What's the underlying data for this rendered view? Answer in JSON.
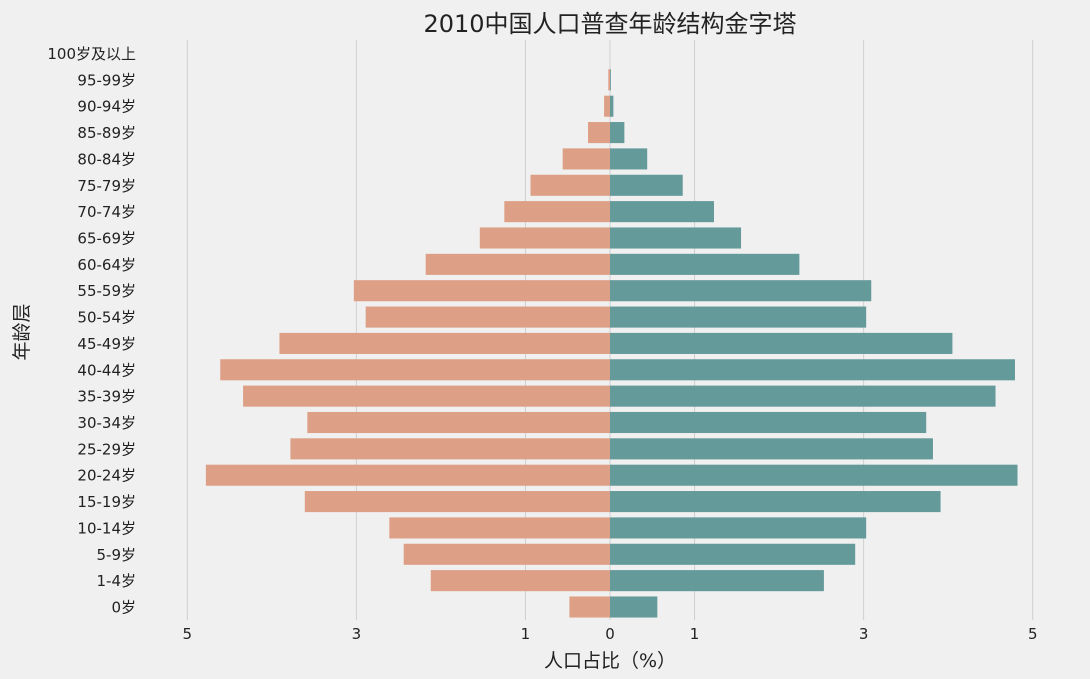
{
  "chart_data": {
    "type": "bar",
    "orientation": "horizontal",
    "title": "2010中国人口普查年龄结构金字塔",
    "xlabel": "人口占比（%）",
    "ylabel": "年龄层",
    "categories": [
      "0岁",
      "1-4岁",
      "5-9岁",
      "10-14岁",
      "15-19岁",
      "20-24岁",
      "25-29岁",
      "30-34岁",
      "35-39岁",
      "40-44岁",
      "45-49岁",
      "50-54岁",
      "55-59岁",
      "60-64岁",
      "65-69岁",
      "70-74岁",
      "75-79岁",
      "80-84岁",
      "85-89岁",
      "90-94岁",
      "95-99岁",
      "100岁及以上"
    ],
    "series": [
      {
        "values": [
          -0.48,
          -2.12,
          -2.44,
          -2.61,
          -3.61,
          -4.78,
          -3.78,
          -3.58,
          -4.34,
          -4.61,
          -3.91,
          -2.89,
          -3.03,
          -2.18,
          -1.54,
          -1.25,
          -0.94,
          -0.56,
          -0.26,
          -0.07,
          -0.02,
          0
        ],
        "color": "#dda086"
      },
      {
        "values": [
          0.56,
          2.53,
          2.9,
          3.03,
          3.91,
          4.82,
          3.82,
          3.74,
          4.56,
          4.79,
          4.05,
          3.03,
          3.09,
          2.24,
          1.55,
          1.23,
          0.86,
          0.44,
          0.17,
          0.04,
          0.01,
          0
        ],
        "color": "#659a9a"
      }
    ],
    "xlim": [
      -5.5,
      5.5
    ],
    "xticks": [
      -5,
      -3,
      -1,
      0,
      1,
      3,
      5
    ],
    "xtick_labels": [
      "5",
      "3",
      "1",
      "0",
      "1",
      "3",
      "5"
    ],
    "grid": true
  }
}
